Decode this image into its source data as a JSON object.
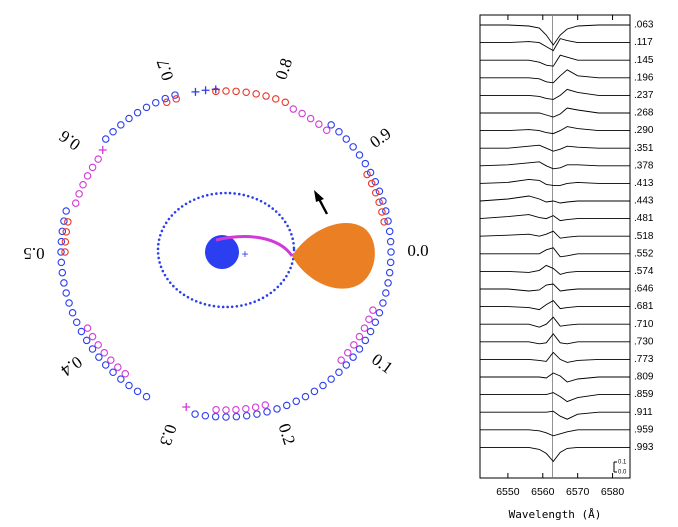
{
  "chart_data": [
    {
      "type": "phase-circle",
      "ticks": [
        {
          "value": 0,
          "label": "0.0"
        },
        0.1,
        0.2,
        0.3,
        0.4,
        0.5,
        0.6,
        0.7,
        0.8,
        0.9
      ],
      "series": [
        {
          "color": "#2b3ef0",
          "marker": "circle",
          "values": [
            0.86,
            0.87,
            0.88,
            0.89,
            0.9,
            0.91,
            0.92,
            0.93,
            0.94,
            0.95,
            0.96,
            0.97,
            0.98,
            0.99,
            0,
            0.01,
            0.02,
            0.03,
            0.04,
            0.05,
            0.06,
            0.07,
            0.08,
            0.09,
            0.1,
            0.11,
            0.12,
            0.13,
            0.14,
            0.15,
            0.16,
            0.17,
            0.18,
            0.19,
            0.2,
            0.21,
            0.22,
            0.23,
            0.24,
            0.25,
            0.26,
            0.27,
            0.28,
            0.33,
            0.34,
            0.35,
            0.36,
            0.37,
            0.38,
            0.39,
            0.4,
            0.41,
            0.42,
            0.43,
            0.44,
            0.45,
            0.46,
            0.47,
            0.48,
            0.49,
            0.5,
            0.51,
            0.52,
            0.53,
            0.54,
            0.62,
            0.63,
            0.64,
            0.65,
            0.66,
            0.67,
            0.68,
            0.69,
            0.7
          ]
        },
        {
          "color": "#e8362a",
          "marker": "circle",
          "values": [
            0.92,
            0.93,
            0.94,
            0.95,
            0.96,
            0.97,
            0.74,
            0.75,
            0.76,
            0.77,
            0.78,
            0.79,
            0.8,
            0.81,
            0.5,
            0.51,
            0.52,
            0.53,
            0.69,
            0.7
          ]
        },
        {
          "color": "#d23ad8",
          "marker": "circle",
          "values": [
            0.82,
            0.83,
            0.84,
            0.85,
            0.86,
            0.06,
            0.07,
            0.08,
            0.09,
            0.1,
            0.11,
            0.12,
            0.21,
            0.22,
            0.23,
            0.24,
            0.25,
            0.26,
            0.36,
            0.37,
            0.38,
            0.39,
            0.4,
            0.41,
            0.42,
            0.55,
            0.56,
            0.57,
            0.58,
            0.59,
            0.6
          ]
        },
        {
          "color": "#2b3ef0",
          "marker": "plus",
          "values": [
            0.72,
            0.73,
            0.74
          ]
        },
        {
          "color": "#d23ad8",
          "marker": "plus",
          "values": [
            0.29,
            0.61
          ]
        }
      ]
    },
    {
      "type": "trailed-spectra",
      "xlabel": "Wavelength (Å)",
      "x": [
        6542,
        6550,
        6556,
        6559,
        6561,
        6563,
        6565,
        6567,
        6570,
        6576,
        6585
      ],
      "xlim": [
        6542,
        6585
      ],
      "xticks": [
        6550,
        6560,
        6570,
        6580
      ],
      "vline": 6562.8,
      "scale_bar": [
        {
          "value": 0,
          "label": "0.0"
        },
        0.1
      ],
      "series": [
        {
          "name": ".063",
          "color": "#000000",
          "values": [
            1.0,
            1.0,
            0.99,
            0.97,
            0.9,
            0.8,
            0.9,
            0.96,
            0.99,
            1.0,
            1.0
          ]
        },
        {
          "name": ".117",
          "color": "#000000",
          "values": [
            1.0,
            1.0,
            1.01,
            1.0,
            0.96,
            0.92,
            1.04,
            1.02,
            1.0,
            1.0,
            1.0
          ]
        },
        {
          "name": ".145",
          "color": "#000000",
          "values": [
            1.0,
            1.0,
            1.0,
            0.98,
            0.95,
            0.94,
            1.05,
            1.03,
            1.0,
            1.0,
            1.0
          ]
        },
        {
          "name": ".196",
          "color": "#000000",
          "values": [
            1.0,
            1.0,
            1.0,
            0.99,
            0.96,
            0.95,
            1.02,
            1.08,
            1.02,
            1.0,
            1.0
          ]
        },
        {
          "name": ".237",
          "color": "#000000",
          "values": [
            1.0,
            1.0,
            1.0,
            0.99,
            0.97,
            0.96,
            1.0,
            1.06,
            1.03,
            1.0,
            1.0
          ]
        },
        {
          "name": ".268",
          "color": "#000000",
          "values": [
            1.0,
            1.0,
            1.0,
            1.0,
            0.98,
            0.96,
            0.99,
            1.05,
            1.03,
            1.0,
            1.0
          ]
        },
        {
          "name": ".290",
          "color": "#000000",
          "values": [
            1.0,
            1.0,
            1.01,
            1.0,
            0.98,
            0.97,
            1.0,
            1.04,
            1.02,
            1.0,
            1.0
          ]
        },
        {
          "name": ".351",
          "color": "#000000",
          "values": [
            1.0,
            1.0,
            1.02,
            1.03,
            1.0,
            0.97,
            0.99,
            1.02,
            1.01,
            1.0,
            1.0
          ]
        },
        {
          "name": ".378",
          "color": "#000000",
          "values": [
            1.0,
            1.01,
            1.03,
            1.04,
            1.0,
            0.97,
            0.98,
            1.01,
            1.01,
            1.0,
            1.0
          ]
        },
        {
          "name": ".413",
          "color": "#000000",
          "values": [
            1.0,
            1.01,
            1.04,
            1.03,
            0.99,
            0.98,
            0.98,
            1.0,
            1.01,
            1.0,
            1.0
          ]
        },
        {
          "name": ".443",
          "color": "#000000",
          "values": [
            1.0,
            1.02,
            1.05,
            1.02,
            0.99,
            1.0,
            0.98,
            0.99,
            1.0,
            1.0,
            1.0
          ]
        },
        {
          "name": ".481",
          "color": "#000000",
          "values": [
            1.0,
            1.02,
            1.04,
            1.01,
            1.0,
            1.03,
            0.98,
            0.99,
            1.0,
            1.0,
            1.0
          ]
        },
        {
          "name": ".518",
          "color": "#000000",
          "values": [
            1.0,
            1.01,
            1.02,
            1.0,
            1.02,
            1.05,
            0.98,
            0.99,
            1.0,
            1.0,
            1.0
          ]
        },
        {
          "name": ".552",
          "color": "#000000",
          "values": [
            1.0,
            1.0,
            1.0,
            1.0,
            1.04,
            1.06,
            0.97,
            0.98,
            1.0,
            1.0,
            1.0
          ]
        },
        {
          "name": ".574",
          "color": "#000000",
          "values": [
            1.0,
            1.0,
            0.99,
            1.01,
            1.06,
            1.03,
            0.97,
            0.99,
            1.0,
            1.0,
            1.0
          ]
        },
        {
          "name": ".646",
          "color": "#000000",
          "values": [
            1.0,
            1.0,
            0.98,
            0.99,
            1.04,
            1.05,
            0.98,
            0.99,
            1.0,
            1.0,
            1.0
          ]
        },
        {
          "name": ".681",
          "color": "#000000",
          "values": [
            1.0,
            1.0,
            0.99,
            0.97,
            1.02,
            1.06,
            0.98,
            0.99,
            1.0,
            1.0,
            1.0
          ]
        },
        {
          "name": ".710",
          "color": "#000000",
          "values": [
            1.0,
            1.0,
            1.0,
            0.97,
            1.0,
            1.07,
            0.98,
            0.99,
            1.0,
            1.0,
            1.0
          ]
        },
        {
          "name": ".730",
          "color": "#000000",
          "values": [
            1.0,
            1.0,
            1.0,
            0.98,
            0.99,
            1.08,
            0.99,
            0.98,
            1.0,
            1.0,
            1.0
          ]
        },
        {
          "name": ".773",
          "color": "#000000",
          "values": [
            1.0,
            1.0,
            1.0,
            0.99,
            0.98,
            1.07,
            1.0,
            0.97,
            0.99,
            1.0,
            1.0
          ]
        },
        {
          "name": ".809",
          "color": "#000000",
          "values": [
            1.0,
            1.0,
            1.0,
            1.0,
            0.99,
            1.04,
            1.01,
            0.95,
            0.98,
            1.0,
            1.0
          ]
        },
        {
          "name": ".859",
          "color": "#000000",
          "values": [
            1.0,
            1.0,
            1.0,
            1.0,
            1.0,
            1.02,
            0.98,
            0.93,
            0.97,
            1.0,
            1.0
          ]
        },
        {
          "name": ".911",
          "color": "#000000",
          "values": [
            1.0,
            1.0,
            1.0,
            1.0,
            1.0,
            1.01,
            0.96,
            0.93,
            0.98,
            1.0,
            1.0
          ]
        },
        {
          "name": ".959",
          "color": "#000000",
          "values": [
            1.0,
            1.0,
            1.0,
            0.99,
            0.97,
            0.94,
            0.96,
            0.98,
            1.0,
            1.0,
            1.0
          ]
        },
        {
          "name": ".993",
          "color": "#000000",
          "values": [
            1.0,
            1.0,
            1.0,
            0.98,
            0.94,
            0.86,
            0.95,
            0.99,
            1.0,
            1.0,
            1.0
          ]
        }
      ]
    }
  ]
}
